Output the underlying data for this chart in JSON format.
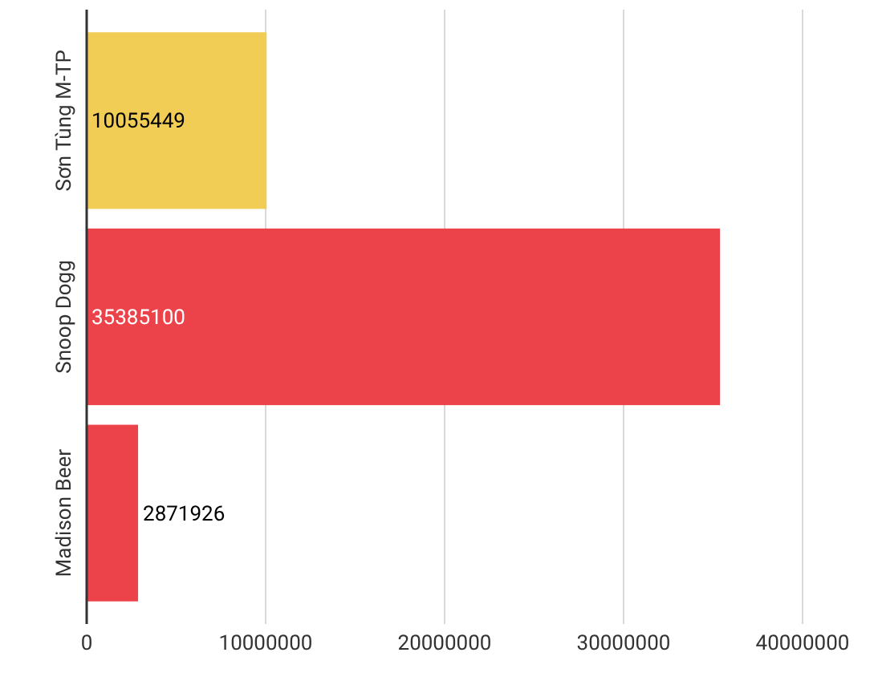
{
  "chart_data": {
    "type": "bar",
    "orientation": "horizontal",
    "categories": [
      "Sơn Tùng M-TP",
      "Snoop Dogg",
      "Madison Beer"
    ],
    "values": [
      10055449,
      35385100,
      2871926
    ],
    "colors": [
      "#f2cd55",
      "#ec434b",
      "#ec434b"
    ],
    "xlim": [
      0,
      40000000
    ],
    "xticks": [
      0,
      10000000,
      20000000,
      30000000,
      40000000
    ],
    "grid": "x",
    "data_labels": true
  }
}
